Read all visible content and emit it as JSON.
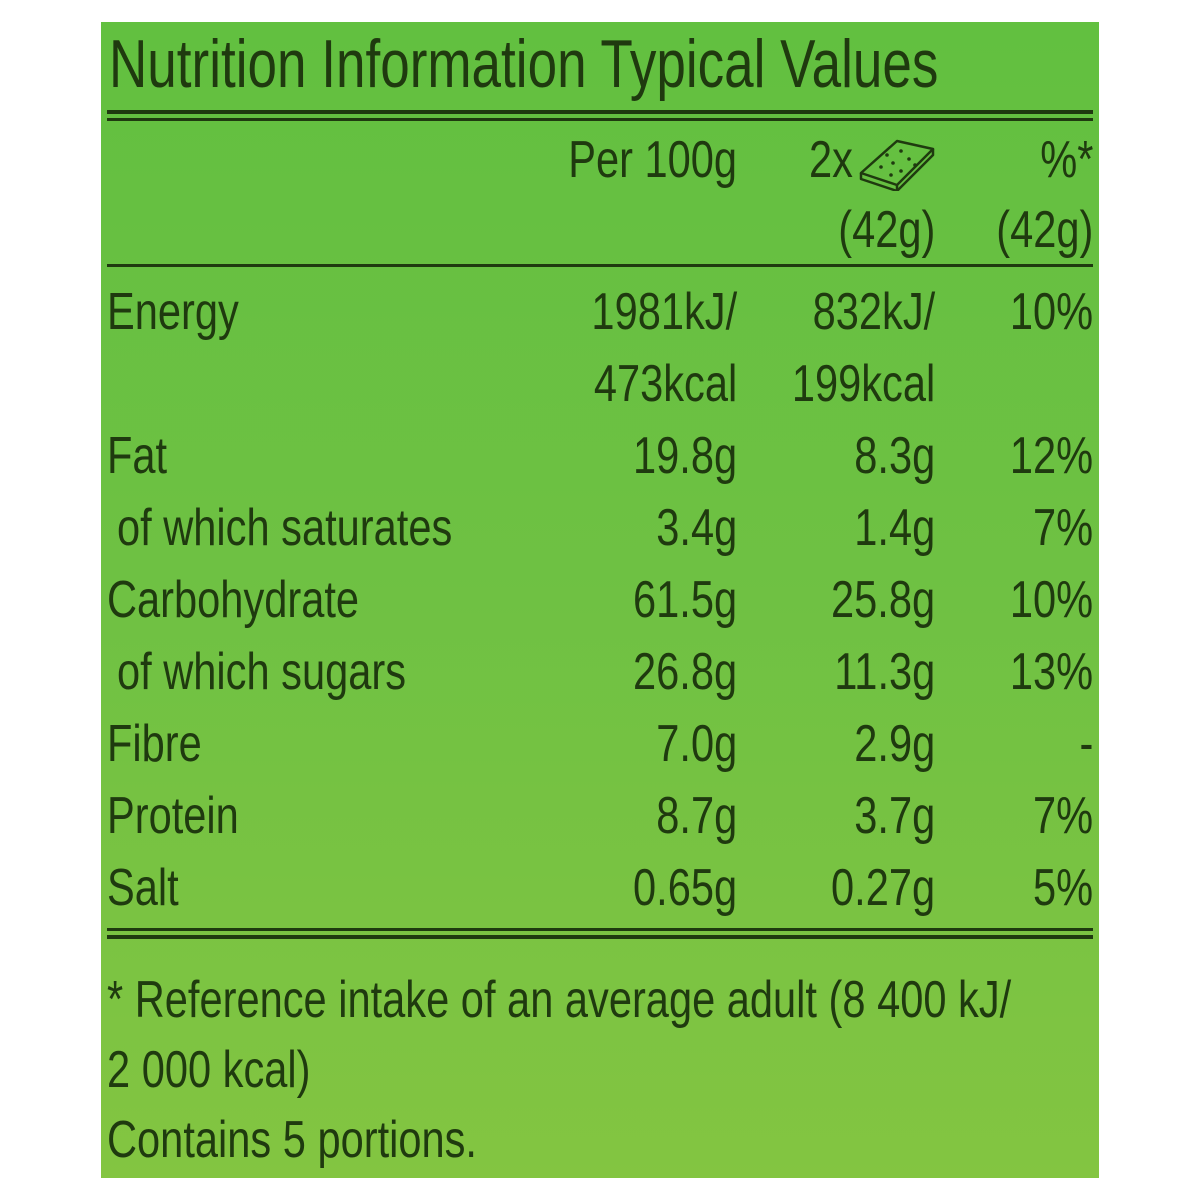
{
  "title": "Nutrition Information Typical Values",
  "header": {
    "per100": "Per 100g",
    "portion_count": "2x",
    "portion_weight": "(42g)",
    "ri_symbol": "%*",
    "ri_weight": "(42g)",
    "portion_icon": "cereal-bar-icon"
  },
  "rows": [
    {
      "label": "Energy",
      "per100_line1": "1981kJ/",
      "per100_line2": "473kcal",
      "portion_line1": "832kJ/",
      "portion_line2": "199kcal",
      "ri": "10%"
    },
    {
      "label": "Fat",
      "per100": "19.8g",
      "portion": "8.3g",
      "ri": "12%"
    },
    {
      "label": " of which saturates",
      "per100": "3.4g",
      "portion": "1.4g",
      "ri": "7%"
    },
    {
      "label": "Carbohydrate",
      "per100": "61.5g",
      "portion": "25.8g",
      "ri": "10%"
    },
    {
      "label": " of which sugars",
      "per100": "26.8g",
      "portion": "11.3g",
      "ri": "13%"
    },
    {
      "label": "Fibre",
      "per100": "7.0g",
      "portion": "2.9g",
      "ri": "-"
    },
    {
      "label": "Protein",
      "per100": "8.7g",
      "portion": "3.7g",
      "ri": "7%"
    },
    {
      "label": "Salt",
      "per100": "0.65g",
      "portion": "0.27g",
      "ri": "5%"
    }
  ],
  "footnote_line1": "* Reference intake of an average adult (8 400 kJ/",
  "footnote_line2": "2 000 kcal)",
  "portions_note": "Contains 5 portions.",
  "colors": {
    "background": "#6ec143",
    "text": "#1f3a0f"
  }
}
